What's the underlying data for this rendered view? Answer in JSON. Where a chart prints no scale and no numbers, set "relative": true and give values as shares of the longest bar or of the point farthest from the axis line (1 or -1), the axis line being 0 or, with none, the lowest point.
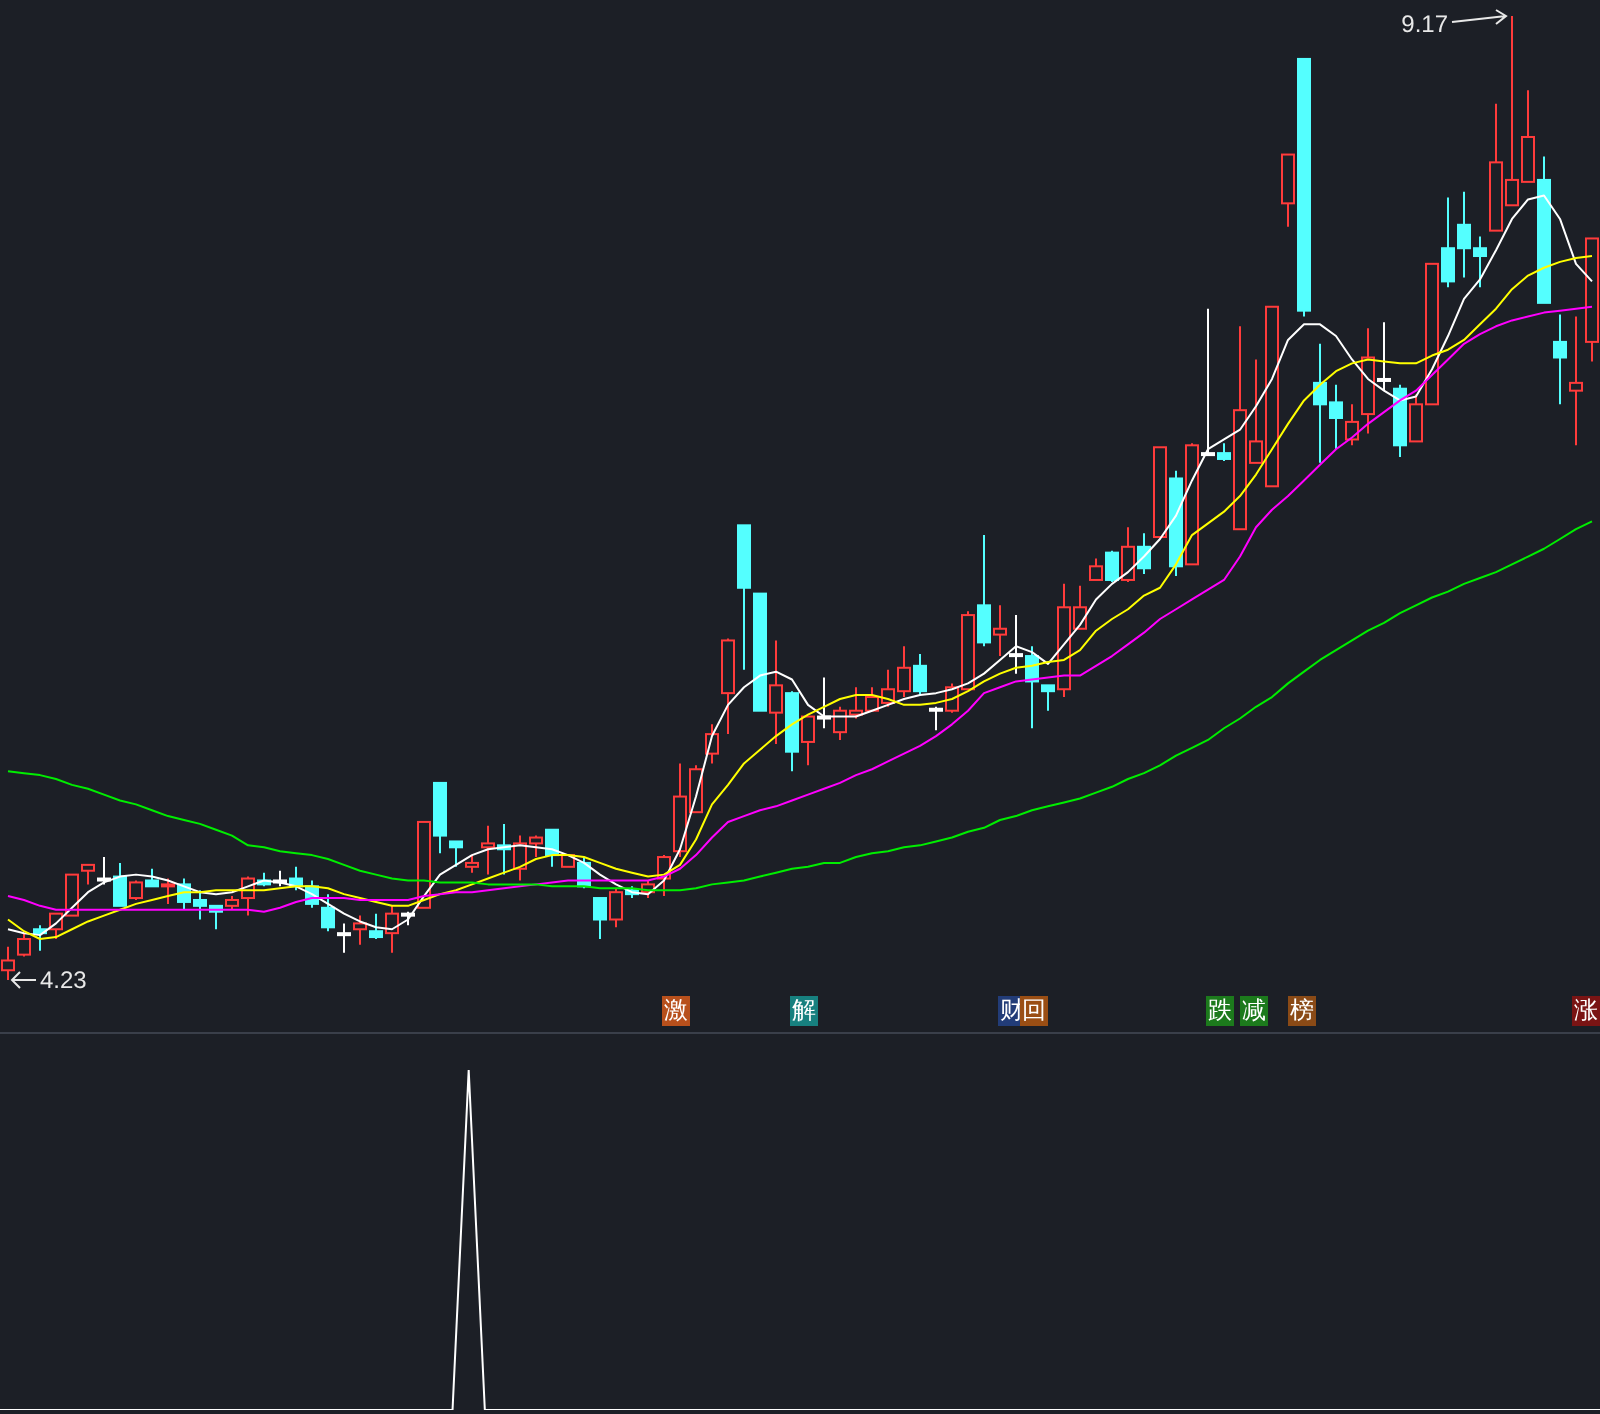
{
  "chart_data": [
    {
      "type": "candlestick",
      "tick_labels": false,
      "categories": [
        null,
        null,
        null,
        null,
        null,
        null,
        null,
        null,
        null,
        null,
        null,
        null,
        null,
        null,
        null,
        null,
        null,
        null,
        null,
        null,
        null,
        null,
        null,
        null,
        null,
        null,
        null,
        null,
        null,
        null,
        null,
        null,
        null,
        null,
        null,
        null,
        null,
        null,
        null,
        null,
        null,
        null,
        null,
        null,
        null,
        null,
        null,
        null,
        null,
        null,
        null,
        null,
        null,
        null,
        null,
        null,
        null,
        null,
        null,
        null,
        null,
        null,
        null,
        null,
        null,
        null,
        null,
        null,
        null,
        null,
        null,
        null,
        null,
        null,
        null,
        null,
        null,
        null,
        null,
        null,
        null,
        null,
        null,
        null,
        null,
        null,
        null,
        null,
        null,
        null,
        null,
        null,
        null,
        null,
        null,
        null,
        null,
        null,
        null,
        null
      ],
      "ohlc": [
        [
          4.28,
          4.4,
          4.23,
          4.33
        ],
        [
          4.36,
          4.47,
          4.35,
          4.44
        ],
        [
          4.49,
          4.51,
          4.38,
          4.47
        ],
        [
          4.49,
          4.57,
          4.44,
          4.57
        ],
        [
          4.56,
          4.77,
          4.56,
          4.77
        ],
        [
          4.79,
          4.82,
          4.72,
          4.82
        ],
        [
          4.75,
          4.86,
          4.72,
          4.75
        ],
        [
          4.76,
          4.83,
          4.61,
          4.61
        ],
        [
          4.65,
          4.74,
          4.64,
          4.73
        ],
        [
          4.74,
          4.8,
          4.71,
          4.71
        ],
        [
          4.71,
          4.75,
          4.62,
          4.72
        ],
        [
          4.72,
          4.75,
          4.59,
          4.63
        ],
        [
          4.64,
          4.69,
          4.54,
          4.61
        ],
        [
          4.61,
          4.61,
          4.49,
          4.58
        ],
        [
          4.61,
          4.66,
          4.59,
          4.64
        ],
        [
          4.65,
          4.76,
          4.56,
          4.75
        ],
        [
          4.74,
          4.78,
          4.71,
          4.72
        ],
        [
          4.74,
          4.79,
          4.71,
          4.74
        ],
        [
          4.75,
          4.81,
          4.69,
          4.71
        ],
        [
          4.71,
          4.74,
          4.6,
          4.62
        ],
        [
          4.6,
          4.67,
          4.48,
          4.5
        ],
        [
          4.47,
          4.52,
          4.37,
          4.47
        ],
        [
          4.49,
          4.56,
          4.41,
          4.52
        ],
        [
          4.48,
          4.57,
          4.44,
          4.45
        ],
        [
          4.47,
          4.61,
          4.37,
          4.57
        ],
        [
          4.57,
          4.58,
          4.51,
          4.57
        ],
        [
          4.6,
          5.04,
          4.6,
          5.04
        ],
        [
          5.24,
          5.24,
          4.88,
          4.97
        ],
        [
          4.94,
          4.94,
          4.81,
          4.91
        ],
        [
          4.81,
          4.87,
          4.78,
          4.83
        ],
        [
          4.91,
          5.02,
          4.77,
          4.93
        ],
        [
          4.92,
          5.03,
          4.77,
          4.9
        ],
        [
          4.8,
          4.97,
          4.74,
          4.93
        ],
        [
          4.93,
          4.97,
          4.86,
          4.96
        ],
        [
          5.0,
          5.0,
          4.81,
          4.87
        ],
        [
          4.81,
          4.87,
          4.81,
          4.87
        ],
        [
          4.83,
          4.86,
          4.7,
          4.71
        ],
        [
          4.65,
          4.65,
          4.44,
          4.54
        ],
        [
          4.54,
          4.7,
          4.5,
          4.68
        ],
        [
          4.69,
          4.71,
          4.65,
          4.67
        ],
        [
          4.68,
          4.74,
          4.65,
          4.72
        ],
        [
          4.75,
          4.87,
          4.66,
          4.86
        ],
        [
          4.89,
          5.34,
          4.86,
          5.17
        ],
        [
          5.09,
          5.33,
          5.09,
          5.31
        ],
        [
          5.39,
          5.54,
          5.34,
          5.49
        ],
        [
          5.7,
          5.98,
          5.49,
          5.97
        ],
        [
          6.56,
          6.56,
          5.82,
          6.24
        ],
        [
          6.21,
          6.21,
          5.61,
          5.61
        ],
        [
          5.6,
          5.97,
          5.44,
          5.74
        ],
        [
          5.7,
          5.71,
          5.3,
          5.4
        ],
        [
          5.45,
          5.58,
          5.33,
          5.58
        ],
        [
          5.58,
          5.78,
          5.52,
          5.58
        ],
        [
          5.5,
          5.63,
          5.46,
          5.61
        ],
        [
          5.59,
          5.73,
          5.57,
          5.61
        ],
        [
          5.61,
          5.73,
          5.61,
          5.68
        ],
        [
          5.65,
          5.82,
          5.63,
          5.72
        ],
        [
          5.71,
          5.94,
          5.68,
          5.83
        ],
        [
          5.84,
          5.9,
          5.69,
          5.71
        ],
        [
          5.62,
          5.63,
          5.51,
          5.62
        ],
        [
          5.61,
          5.75,
          5.6,
          5.73
        ],
        [
          5.72,
          6.12,
          5.72,
          6.1
        ],
        [
          6.15,
          6.51,
          5.94,
          5.96
        ],
        [
          6.0,
          6.15,
          5.89,
          6.03
        ],
        [
          5.9,
          6.1,
          5.8,
          5.9
        ],
        [
          5.89,
          5.94,
          5.52,
          5.76
        ],
        [
          5.74,
          5.74,
          5.61,
          5.71
        ],
        [
          5.72,
          6.26,
          5.68,
          6.14
        ],
        [
          6.03,
          6.25,
          6.03,
          6.14
        ],
        [
          6.28,
          6.39,
          6.28,
          6.35
        ],
        [
          6.42,
          6.43,
          6.27,
          6.28
        ],
        [
          6.28,
          6.55,
          6.27,
          6.45
        ],
        [
          6.45,
          6.52,
          6.31,
          6.34
        ],
        [
          6.5,
          6.96,
          6.5,
          6.96
        ],
        [
          6.8,
          6.84,
          6.3,
          6.35
        ],
        [
          6.36,
          6.98,
          6.36,
          6.97
        ],
        [
          6.93,
          7.67,
          6.92,
          6.93
        ],
        [
          6.93,
          6.98,
          6.89,
          6.9
        ],
        [
          6.54,
          7.58,
          6.54,
          7.15
        ],
        [
          6.88,
          7.41,
          6.88,
          6.99
        ],
        [
          6.76,
          7.68,
          6.76,
          7.68
        ],
        [
          8.21,
          8.46,
          8.09,
          8.46
        ],
        [
          8.95,
          8.95,
          7.63,
          7.66
        ],
        [
          7.29,
          7.49,
          6.88,
          7.18
        ],
        [
          7.19,
          7.28,
          6.95,
          7.11
        ],
        [
          7.0,
          7.18,
          6.97,
          7.09
        ],
        [
          7.13,
          7.57,
          7.03,
          7.42
        ],
        [
          7.31,
          7.6,
          7.25,
          7.31
        ],
        [
          7.26,
          7.28,
          6.91,
          6.97
        ],
        [
          6.99,
          7.23,
          6.99,
          7.18
        ],
        [
          7.18,
          7.9,
          7.18,
          7.9
        ],
        [
          7.98,
          8.24,
          7.78,
          7.81
        ],
        [
          8.1,
          8.27,
          7.83,
          7.98
        ],
        [
          7.98,
          8.04,
          7.78,
          7.94
        ],
        [
          8.07,
          8.72,
          8.07,
          8.42
        ],
        [
          8.2,
          9.17,
          8.2,
          8.33
        ],
        [
          8.32,
          8.79,
          8.32,
          8.55
        ],
        [
          8.33,
          8.45,
          7.7,
          7.7
        ],
        [
          7.5,
          7.64,
          7.18,
          7.42
        ],
        [
          7.25,
          7.63,
          6.97,
          7.29
        ],
        [
          7.5,
          8.03,
          7.4,
          8.03
        ]
      ],
      "colors": [
        "#ff3b3b",
        "#ff3b3b",
        "#54ffff",
        "#ff3b3b",
        "#ff3b3b",
        "#ff3b3b",
        "#ffffff",
        "#54ffff",
        "#ff3b3b",
        "#54ffff",
        "#ff3b3b",
        "#54ffff",
        "#54ffff",
        "#54ffff",
        "#ff3b3b",
        "#ff3b3b",
        "#54ffff",
        "#ffffff",
        "#54ffff",
        "#54ffff",
        "#54ffff",
        "#ffffff",
        "#ff3b3b",
        "#54ffff",
        "#ff3b3b",
        "#ffffff",
        "#ff3b3b",
        "#54ffff",
        "#54ffff",
        "#ff3b3b",
        "#ff3b3b",
        "#54ffff",
        "#ff3b3b",
        "#ff3b3b",
        "#54ffff",
        "#ff3b3b",
        "#54ffff",
        "#54ffff",
        "#ff3b3b",
        "#54ffff",
        "#ff3b3b",
        "#ff3b3b",
        "#ff3b3b",
        "#ff3b3b",
        "#ff3b3b",
        "#ff3b3b",
        "#54ffff",
        "#54ffff",
        "#ff3b3b",
        "#54ffff",
        "#ff3b3b",
        "#ffffff",
        "#ff3b3b",
        "#ff3b3b",
        "#ff3b3b",
        "#ff3b3b",
        "#ff3b3b",
        "#54ffff",
        "#ffffff",
        "#ff3b3b",
        "#ff3b3b",
        "#54ffff",
        "#ff3b3b",
        "#ffffff",
        "#54ffff",
        "#54ffff",
        "#ff3b3b",
        "#ff3b3b",
        "#ff3b3b",
        "#54ffff",
        "#ff3b3b",
        "#54ffff",
        "#ff3b3b",
        "#54ffff",
        "#ff3b3b",
        "#ffffff",
        "#54ffff",
        "#ff3b3b",
        "#ff3b3b",
        "#ff3b3b",
        "#ff3b3b",
        "#54ffff",
        "#54ffff",
        "#54ffff",
        "#ff3b3b",
        "#ff3b3b",
        "#ffffff",
        "#54ffff",
        "#ff3b3b",
        "#ff3b3b",
        "#54ffff",
        "#54ffff",
        "#54ffff",
        "#ff3b3b",
        "#ff3b3b",
        "#ff3b3b",
        "#54ffff",
        "#54ffff",
        "#ff3b3b",
        "#ff3b3b"
      ],
      "series": [
        {
          "type": "line",
          "color": "#ffffff",
          "values": [
            4.49,
            4.47,
            4.46,
            4.52,
            4.6,
            4.68,
            4.73,
            4.76,
            4.77,
            4.76,
            4.74,
            4.71,
            4.68,
            4.67,
            4.68,
            4.71,
            4.74,
            4.73,
            4.71,
            4.67,
            4.62,
            4.57,
            4.53,
            4.5,
            4.49,
            4.54,
            4.66,
            4.77,
            4.82,
            4.87,
            4.9,
            4.91,
            4.92,
            4.91,
            4.9,
            4.87,
            4.83,
            4.77,
            4.72,
            4.68,
            4.67,
            4.74,
            4.9,
            5.17,
            5.48,
            5.64,
            5.73,
            5.79,
            5.81,
            5.77,
            5.64,
            5.58,
            5.58,
            5.58,
            5.61,
            5.64,
            5.67,
            5.69,
            5.7,
            5.72,
            5.75,
            5.8,
            5.87,
            5.94,
            5.91,
            5.85,
            5.95,
            6.05,
            6.18,
            6.26,
            6.32,
            6.4,
            6.49,
            6.61,
            6.79,
            6.95,
            7.0,
            7.05,
            7.17,
            7.31,
            7.51,
            7.59,
            7.59,
            7.53,
            7.41,
            7.31,
            7.25,
            7.2,
            7.22,
            7.36,
            7.53,
            7.72,
            7.82,
            7.97,
            8.13,
            8.23,
            8.25,
            8.13,
            7.9,
            7.81
          ]
        },
        {
          "type": "line",
          "color": "#ffff00",
          "values": [
            4.54,
            4.48,
            4.44,
            4.45,
            4.49,
            4.53,
            4.56,
            4.59,
            4.62,
            4.64,
            4.66,
            4.68,
            4.68,
            4.69,
            4.69,
            4.69,
            4.69,
            4.7,
            4.71,
            4.71,
            4.7,
            4.67,
            4.65,
            4.63,
            4.61,
            4.61,
            4.64,
            4.67,
            4.69,
            4.72,
            4.75,
            4.78,
            4.81,
            4.85,
            4.87,
            4.87,
            4.86,
            4.83,
            4.8,
            4.78,
            4.76,
            4.77,
            4.82,
            4.95,
            5.13,
            5.23,
            5.34,
            5.41,
            5.48,
            5.54,
            5.59,
            5.63,
            5.67,
            5.69,
            5.69,
            5.67,
            5.64,
            5.64,
            5.65,
            5.67,
            5.71,
            5.76,
            5.8,
            5.83,
            5.84,
            5.86,
            5.87,
            5.92,
            6.02,
            6.08,
            6.13,
            6.2,
            6.24,
            6.36,
            6.51,
            6.57,
            6.63,
            6.71,
            6.82,
            6.95,
            7.08,
            7.2,
            7.28,
            7.35,
            7.39,
            7.41,
            7.4,
            7.39,
            7.39,
            7.43,
            7.46,
            7.51,
            7.59,
            7.67,
            7.77,
            7.84,
            7.88,
            7.91,
            7.93,
            7.94
          ]
        },
        {
          "type": "line",
          "color": "#ff00ff",
          "values": [
            4.66,
            4.64,
            4.61,
            4.59,
            4.59,
            4.59,
            4.59,
            4.59,
            4.59,
            4.59,
            4.59,
            4.59,
            4.59,
            4.59,
            4.59,
            4.59,
            4.58,
            4.6,
            4.63,
            4.65,
            4.65,
            4.65,
            4.64,
            4.64,
            4.64,
            4.64,
            4.66,
            4.67,
            4.68,
            4.68,
            4.69,
            4.7,
            4.71,
            4.72,
            4.73,
            4.74,
            4.74,
            4.74,
            4.74,
            4.74,
            4.74,
            4.76,
            4.8,
            4.87,
            4.96,
            5.04,
            5.07,
            5.1,
            5.12,
            5.15,
            5.18,
            5.21,
            5.24,
            5.28,
            5.31,
            5.35,
            5.39,
            5.43,
            5.48,
            5.54,
            5.61,
            5.7,
            5.73,
            5.76,
            5.77,
            5.78,
            5.79,
            5.79,
            5.84,
            5.89,
            5.95,
            6.01,
            6.08,
            6.13,
            6.18,
            6.23,
            6.28,
            6.4,
            6.55,
            6.64,
            6.71,
            6.79,
            6.87,
            6.95,
            7.01,
            7.08,
            7.14,
            7.2,
            7.25,
            7.33,
            7.41,
            7.49,
            7.54,
            7.58,
            7.61,
            7.63,
            7.65,
            7.66,
            7.67,
            7.68
          ]
        },
        {
          "type": "line",
          "color": "#00ee00",
          "values": [
            5.3,
            5.29,
            5.28,
            5.26,
            5.23,
            5.21,
            5.18,
            5.15,
            5.13,
            5.1,
            5.07,
            5.05,
            5.03,
            5.0,
            4.97,
            4.92,
            4.91,
            4.89,
            4.88,
            4.87,
            4.85,
            4.82,
            4.79,
            4.77,
            4.75,
            4.74,
            4.74,
            4.73,
            4.73,
            4.73,
            4.72,
            4.72,
            4.72,
            4.72,
            4.71,
            4.71,
            4.71,
            4.7,
            4.7,
            4.7,
            4.69,
            4.69,
            4.69,
            4.7,
            4.72,
            4.73,
            4.74,
            4.76,
            4.78,
            4.8,
            4.81,
            4.83,
            4.83,
            4.86,
            4.88,
            4.89,
            4.91,
            4.92,
            4.94,
            4.96,
            4.99,
            5.01,
            5.05,
            5.07,
            5.1,
            5.12,
            5.14,
            5.16,
            5.19,
            5.22,
            5.26,
            5.29,
            5.33,
            5.38,
            5.42,
            5.46,
            5.52,
            5.57,
            5.63,
            5.68,
            5.75,
            5.81,
            5.87,
            5.92,
            5.97,
            6.02,
            6.06,
            6.11,
            6.15,
            6.19,
            6.22,
            6.26,
            6.29,
            6.32,
            6.36,
            6.4,
            6.44,
            6.49,
            6.54,
            6.58
          ]
        }
      ],
      "annotations": [
        "9.17",
        "4.23",
        "激",
        "解",
        "财",
        "回",
        "跌",
        "减",
        "榜",
        "涨"
      ]
    },
    {
      "type": "line",
      "relative": true,
      "tick_labels": false,
      "categories": [
        null,
        null,
        null,
        null,
        null,
        null,
        null,
        null,
        null,
        null,
        null,
        null,
        null,
        null,
        null,
        null,
        null,
        null,
        null,
        null,
        null,
        null,
        null,
        null,
        null,
        null,
        null,
        null,
        null,
        null,
        null,
        null,
        null,
        null,
        null,
        null,
        null,
        null,
        null,
        null,
        null,
        null,
        null,
        null,
        null,
        null,
        null,
        null,
        null,
        null,
        null,
        null,
        null,
        null,
        null,
        null,
        null,
        null,
        null,
        null,
        null,
        null,
        null,
        null,
        null,
        null,
        null,
        null,
        null,
        null,
        null,
        null,
        null,
        null,
        null,
        null,
        null,
        null,
        null,
        null,
        null,
        null,
        null,
        null,
        null,
        null,
        null,
        null,
        null,
        null,
        null,
        null,
        null,
        null,
        null,
        null,
        null,
        null,
        null,
        null
      ],
      "series": [
        {
          "color": "#ffffff",
          "values": [
            0,
            0,
            0,
            0,
            0,
            0,
            0,
            0,
            0,
            0,
            0,
            0,
            0,
            0,
            0,
            0,
            0,
            0,
            0,
            0,
            0,
            0,
            0,
            0,
            0,
            0,
            0,
            0,
            0,
            1,
            0,
            0,
            0,
            0,
            0,
            0,
            0,
            0,
            0,
            0,
            0,
            0,
            0,
            0,
            0,
            0,
            0,
            0,
            0,
            0,
            0,
            0,
            0,
            0,
            0,
            0,
            0,
            0,
            0,
            0,
            0,
            0,
            0,
            0,
            0,
            0,
            0,
            0,
            0,
            0,
            0,
            0,
            0,
            0,
            0,
            0,
            0,
            0,
            0,
            0,
            0,
            0,
            0,
            0,
            0,
            0,
            0,
            0,
            0,
            0,
            0,
            0,
            0,
            0,
            0,
            0,
            0,
            0,
            0,
            0
          ]
        }
      ]
    }
  ]
}
